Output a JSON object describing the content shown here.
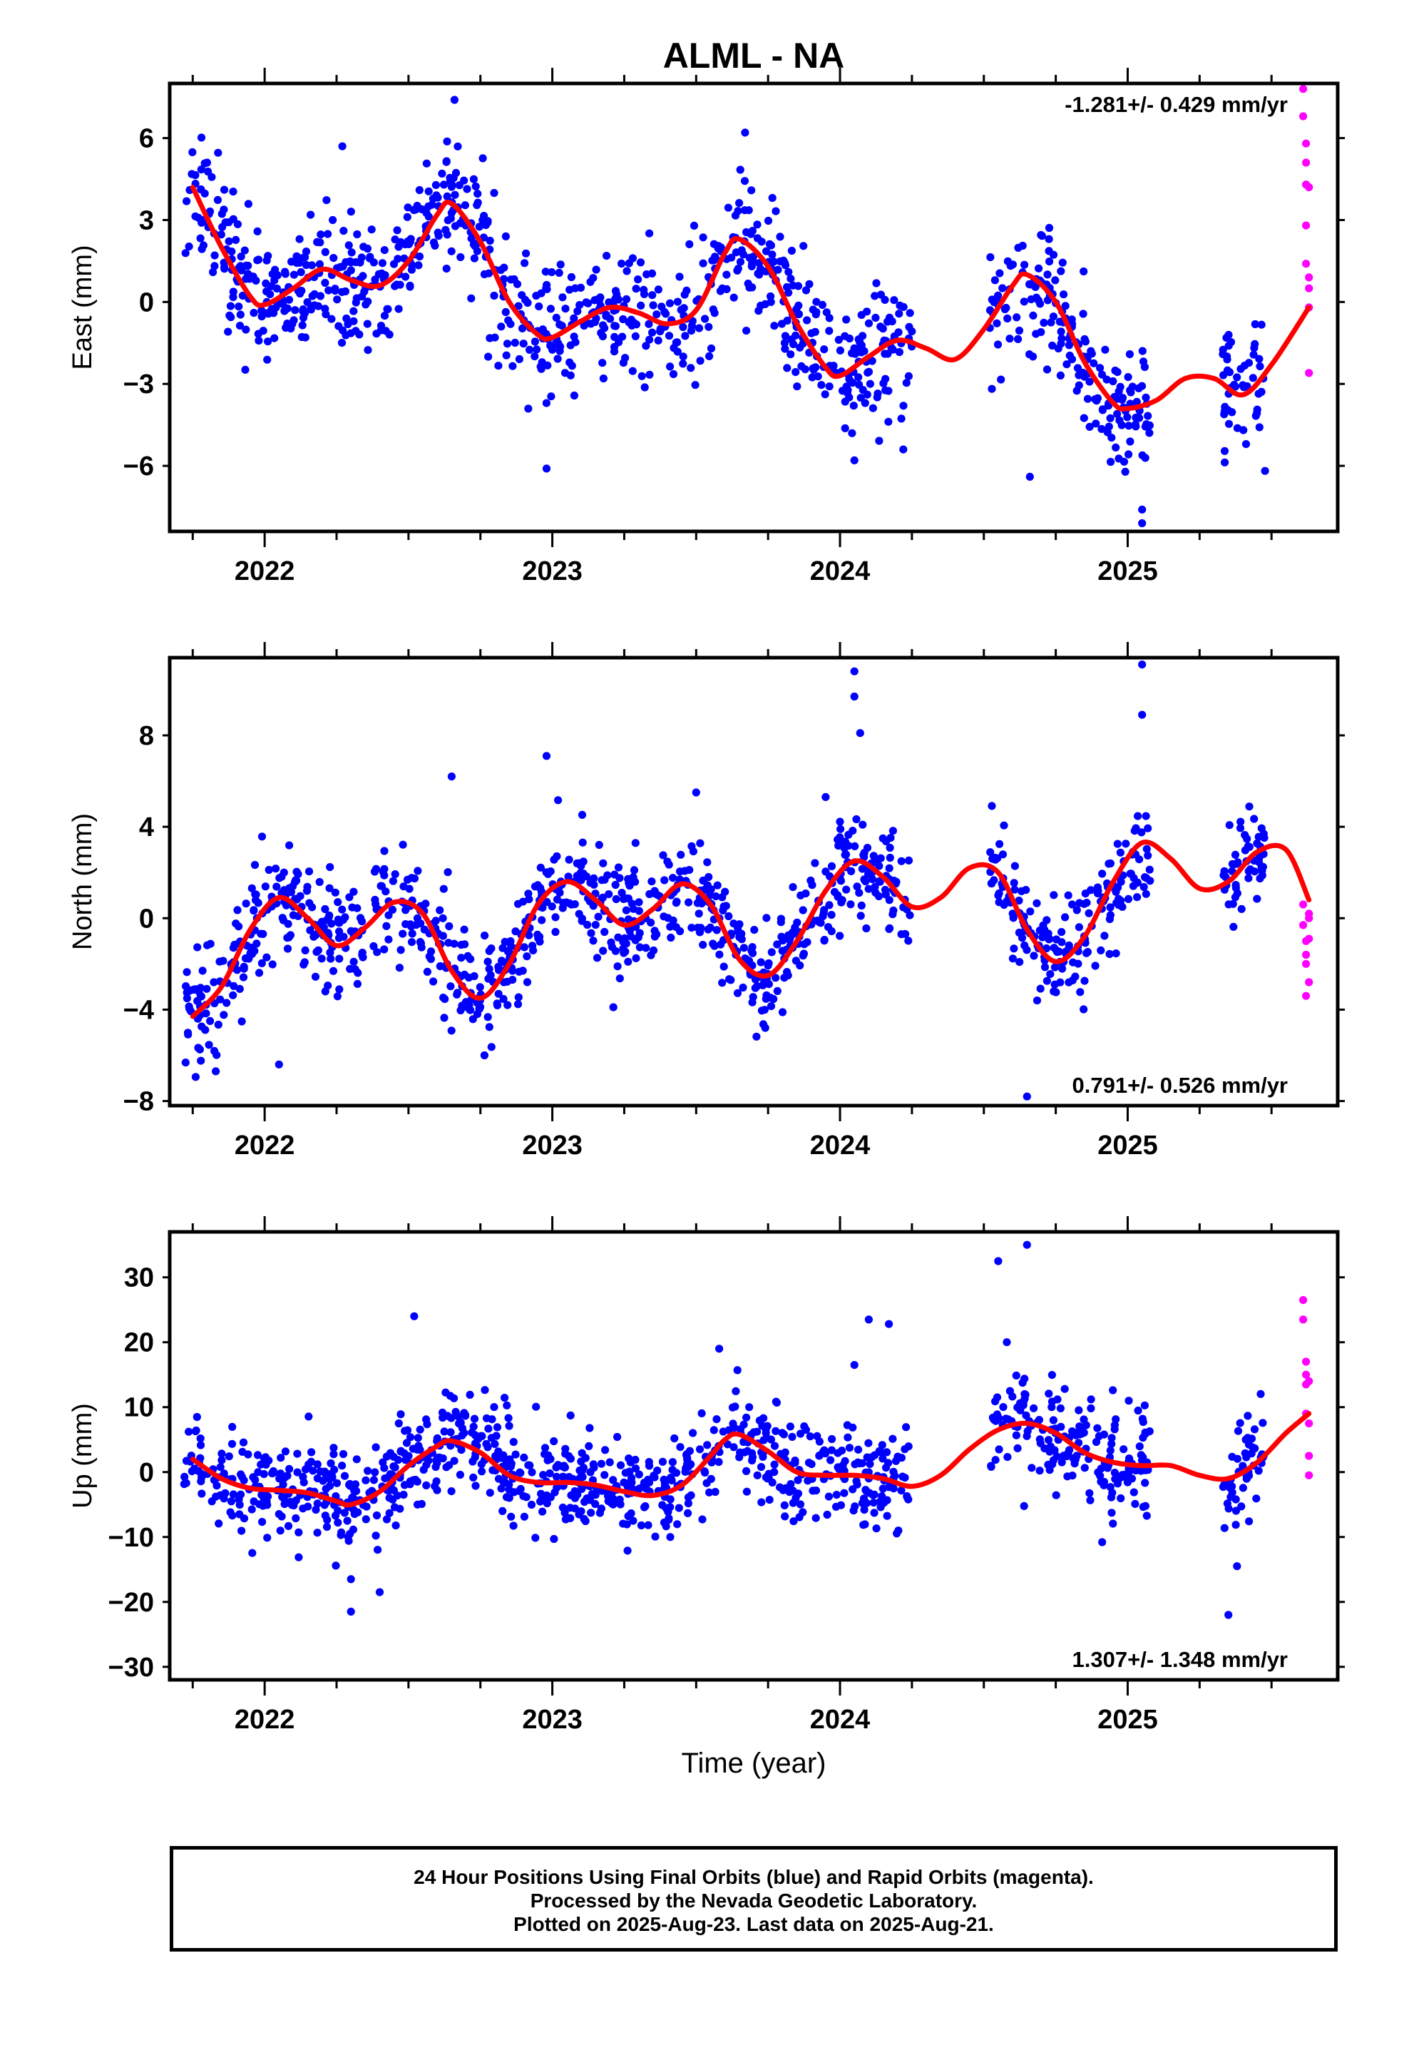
{
  "title": "ALML - NA",
  "xlabel": "Time (year)",
  "footer": {
    "line1": "24 Hour Positions Using Final Orbits (blue) and Rapid Orbits (magenta).",
    "line2": "Processed by the Nevada Geodetic Laboratory.",
    "line3": "Plotted on 2025-Aug-23. Last data on 2025-Aug-21."
  },
  "colors": {
    "final": "#0000ff",
    "rapid": "#ff00ff",
    "fit": "#ff0000",
    "frame": "#000000"
  },
  "chart_data": [
    {
      "type": "scatter",
      "ylabel": "East (mm)",
      "rate_label": "-1.281+/- 0.429 mm/yr",
      "rate_position": "top-right",
      "xlim": [
        2021.67,
        2025.73
      ],
      "ylim": [
        -8.4,
        8.0
      ],
      "yticks": [
        6,
        3,
        0,
        -3,
        -6
      ],
      "ytick_labels": [
        "6",
        "3",
        "0",
        "−3",
        "−6"
      ],
      "xticks": [
        2022,
        2023,
        2024,
        2025
      ],
      "xtick_labels": [
        "2022",
        "2023",
        "2024",
        "2025"
      ],
      "fit_curve": {
        "x": [
          2021.75,
          2021.85,
          2021.95,
          2022.0,
          2022.1,
          2022.2,
          2022.3,
          2022.4,
          2022.5,
          2022.6,
          2022.65,
          2022.75,
          2022.85,
          2022.95,
          2023.0,
          2023.1,
          2023.2,
          2023.3,
          2023.4,
          2023.5,
          2023.6,
          2023.65,
          2023.75,
          2023.85,
          2023.95,
          2024.0,
          2024.1,
          2024.2,
          2024.3,
          2024.4,
          2024.5,
          2024.6,
          2024.65,
          2024.75,
          2024.85,
          2024.95,
          2025.0,
          2025.1,
          2025.2,
          2025.3,
          2025.4,
          2025.5,
          2025.63
        ],
        "y": [
          4.2,
          2.0,
          0.2,
          -0.1,
          0.5,
          1.2,
          0.8,
          0.6,
          1.5,
          3.2,
          3.6,
          2.2,
          0.0,
          -1.2,
          -1.3,
          -0.7,
          -0.2,
          -0.4,
          -0.8,
          -0.3,
          1.8,
          2.3,
          1.3,
          -0.8,
          -2.4,
          -2.7,
          -2.0,
          -1.4,
          -1.7,
          -2.1,
          -1.0,
          0.6,
          1.0,
          0.0,
          -2.2,
          -3.7,
          -3.9,
          -3.6,
          -2.8,
          -2.8,
          -3.4,
          -2.3,
          -0.2
        ]
      },
      "final_summary": {
        "segments": [
          [
            2021.72,
            2023.95
          ],
          [
            2023.95,
            2024.25
          ],
          [
            2024.52,
            2025.08
          ],
          [
            2025.33,
            2025.48
          ]
        ],
        "anomalies": [
          [
            2021.8,
            5.1
          ],
          [
            2022.27,
            5.7
          ],
          [
            2022.66,
            7.4
          ],
          [
            2022.98,
            -6.1
          ],
          [
            2023.67,
            6.2
          ],
          [
            2024.05,
            -5.8
          ],
          [
            2024.22,
            -5.4
          ],
          [
            2024.66,
            -6.4
          ],
          [
            2025.05,
            -8.1
          ],
          [
            2025.05,
            -7.6
          ]
        ],
        "scatter_sd": 1.2
      },
      "rapid_points": {
        "x": [
          2025.61,
          2025.61,
          2025.62,
          2025.62,
          2025.62,
          2025.62,
          2025.62,
          2025.63,
          2025.63,
          2025.63,
          2025.63,
          2025.63
        ],
        "y": [
          7.8,
          6.8,
          5.8,
          5.1,
          4.3,
          2.8,
          1.4,
          0.9,
          0.5,
          -0.2,
          -2.6,
          4.2
        ]
      }
    },
    {
      "type": "scatter",
      "ylabel": "North (mm)",
      "rate_label": "0.791+/- 0.526 mm/yr",
      "rate_position": "bottom-right",
      "xlim": [
        2021.67,
        2025.73
      ],
      "ylim": [
        -8.2,
        11.4
      ],
      "yticks": [
        8,
        4,
        0,
        -4,
        -8
      ],
      "ytick_labels": [
        "8",
        "4",
        "0",
        "−4",
        "−8"
      ],
      "xticks": [
        2022,
        2023,
        2024,
        2025
      ],
      "xtick_labels": [
        "2022",
        "2023",
        "2024",
        "2025"
      ],
      "fit_curve": {
        "x": [
          2021.75,
          2021.85,
          2021.95,
          2022.05,
          2022.15,
          2022.25,
          2022.35,
          2022.45,
          2022.55,
          2022.65,
          2022.75,
          2022.85,
          2022.95,
          2023.05,
          2023.15,
          2023.25,
          2023.35,
          2023.45,
          2023.55,
          2023.65,
          2023.75,
          2023.85,
          2023.95,
          2024.05,
          2024.15,
          2024.25,
          2024.35,
          2024.45,
          2024.55,
          2024.65,
          2024.75,
          2024.85,
          2024.95,
          2025.05,
          2025.15,
          2025.25,
          2025.35,
          2025.45,
          2025.55,
          2025.63
        ],
        "y": [
          -4.3,
          -3.0,
          -0.5,
          0.9,
          0.0,
          -1.2,
          -0.4,
          0.7,
          0.2,
          -2.3,
          -3.5,
          -2.0,
          0.6,
          1.6,
          0.8,
          -0.3,
          0.4,
          1.5,
          0.6,
          -1.8,
          -2.5,
          -1.0,
          1.2,
          2.5,
          1.8,
          0.5,
          0.9,
          2.2,
          2.0,
          -0.5,
          -1.9,
          -0.8,
          1.6,
          3.3,
          2.6,
          1.3,
          1.6,
          2.9,
          3.0,
          0.8
        ]
      },
      "final_summary": {
        "segments": [
          [
            2021.72,
            2023.95
          ],
          [
            2023.95,
            2024.25
          ],
          [
            2024.52,
            2025.08
          ],
          [
            2025.33,
            2025.48
          ]
        ],
        "anomalies": [
          [
            2021.83,
            -6.7
          ],
          [
            2022.05,
            -6.4
          ],
          [
            2022.65,
            6.2
          ],
          [
            2022.98,
            7.1
          ],
          [
            2023.5,
            5.5
          ],
          [
            2023.95,
            5.3
          ],
          [
            2024.05,
            10.8
          ],
          [
            2024.05,
            9.7
          ],
          [
            2024.07,
            8.1
          ],
          [
            2024.65,
            -7.8
          ],
          [
            2025.05,
            11.1
          ],
          [
            2025.05,
            8.9
          ]
        ],
        "scatter_sd": 1.2
      },
      "rapid_points": {
        "x": [
          2025.61,
          2025.61,
          2025.62,
          2025.62,
          2025.62,
          2025.62,
          2025.63,
          2025.63,
          2025.63,
          2025.63
        ],
        "y": [
          0.6,
          -0.3,
          -1.0,
          -1.6,
          -2.0,
          -3.4,
          0.2,
          -0.9,
          -2.8,
          0.0
        ]
      }
    },
    {
      "type": "scatter",
      "ylabel": "Up (mm)",
      "rate_label": "1.307+/- 1.348 mm/yr",
      "rate_position": "bottom-right",
      "xlim": [
        2021.67,
        2025.73
      ],
      "ylim": [
        -32.0,
        37.0
      ],
      "yticks": [
        30,
        20,
        10,
        0,
        -10,
        -20,
        -30
      ],
      "ytick_labels": [
        "30",
        "20",
        "10",
        "0",
        "−10",
        "−20",
        "−30"
      ],
      "xticks": [
        2022,
        2023,
        2024,
        2025
      ],
      "xtick_labels": [
        "2022",
        "2023",
        "2024",
        "2025"
      ],
      "fit_curve": {
        "x": [
          2021.75,
          2021.85,
          2021.95,
          2022.05,
          2022.15,
          2022.25,
          2022.3,
          2022.4,
          2022.5,
          2022.6,
          2022.65,
          2022.75,
          2022.85,
          2022.95,
          2023.05,
          2023.15,
          2023.25,
          2023.35,
          2023.45,
          2023.55,
          2023.6,
          2023.65,
          2023.75,
          2023.85,
          2023.95,
          2024.05,
          2024.15,
          2024.25,
          2024.35,
          2024.45,
          2024.55,
          2024.65,
          2024.75,
          2024.85,
          2024.95,
          2025.05,
          2025.15,
          2025.25,
          2025.35,
          2025.45,
          2025.55,
          2025.63
        ],
        "y": [
          2.0,
          -1.0,
          -2.5,
          -2.8,
          -3.2,
          -4.5,
          -5.0,
          -3.0,
          1.0,
          4.0,
          4.8,
          3.0,
          -0.5,
          -1.6,
          -1.6,
          -2.0,
          -3.0,
          -3.6,
          -2.0,
          2.5,
          5.0,
          5.8,
          3.2,
          0.0,
          -0.5,
          -0.5,
          -1.0,
          -2.2,
          -0.5,
          3.5,
          6.5,
          7.5,
          6.0,
          3.0,
          1.5,
          1.0,
          1.0,
          -0.5,
          -1.0,
          1.5,
          6.0,
          9.0
        ]
      },
      "final_summary": {
        "segments": [
          [
            2021.72,
            2023.95
          ],
          [
            2023.95,
            2024.25
          ],
          [
            2024.52,
            2025.08
          ],
          [
            2025.33,
            2025.48
          ]
        ],
        "anomalies": [
          [
            2022.3,
            -21.5
          ],
          [
            2022.3,
            -16.5
          ],
          [
            2022.4,
            -18.5
          ],
          [
            2022.52,
            24.0
          ],
          [
            2023.58,
            19.0
          ],
          [
            2024.05,
            16.5
          ],
          [
            2024.1,
            23.5
          ],
          [
            2024.17,
            22.8
          ],
          [
            2024.55,
            32.5
          ],
          [
            2024.65,
            35.0
          ],
          [
            2024.58,
            20.0
          ],
          [
            2025.35,
            -22.0
          ],
          [
            2025.38,
            -14.5
          ]
        ],
        "scatter_sd": 4.0
      },
      "rapid_points": {
        "x": [
          2025.61,
          2025.61,
          2025.62,
          2025.62,
          2025.62,
          2025.62,
          2025.63,
          2025.63,
          2025.63,
          2025.63
        ],
        "y": [
          26.5,
          23.5,
          17.0,
          15.0,
          13.5,
          9.0,
          7.5,
          2.5,
          -0.5,
          14.0
        ]
      }
    }
  ]
}
